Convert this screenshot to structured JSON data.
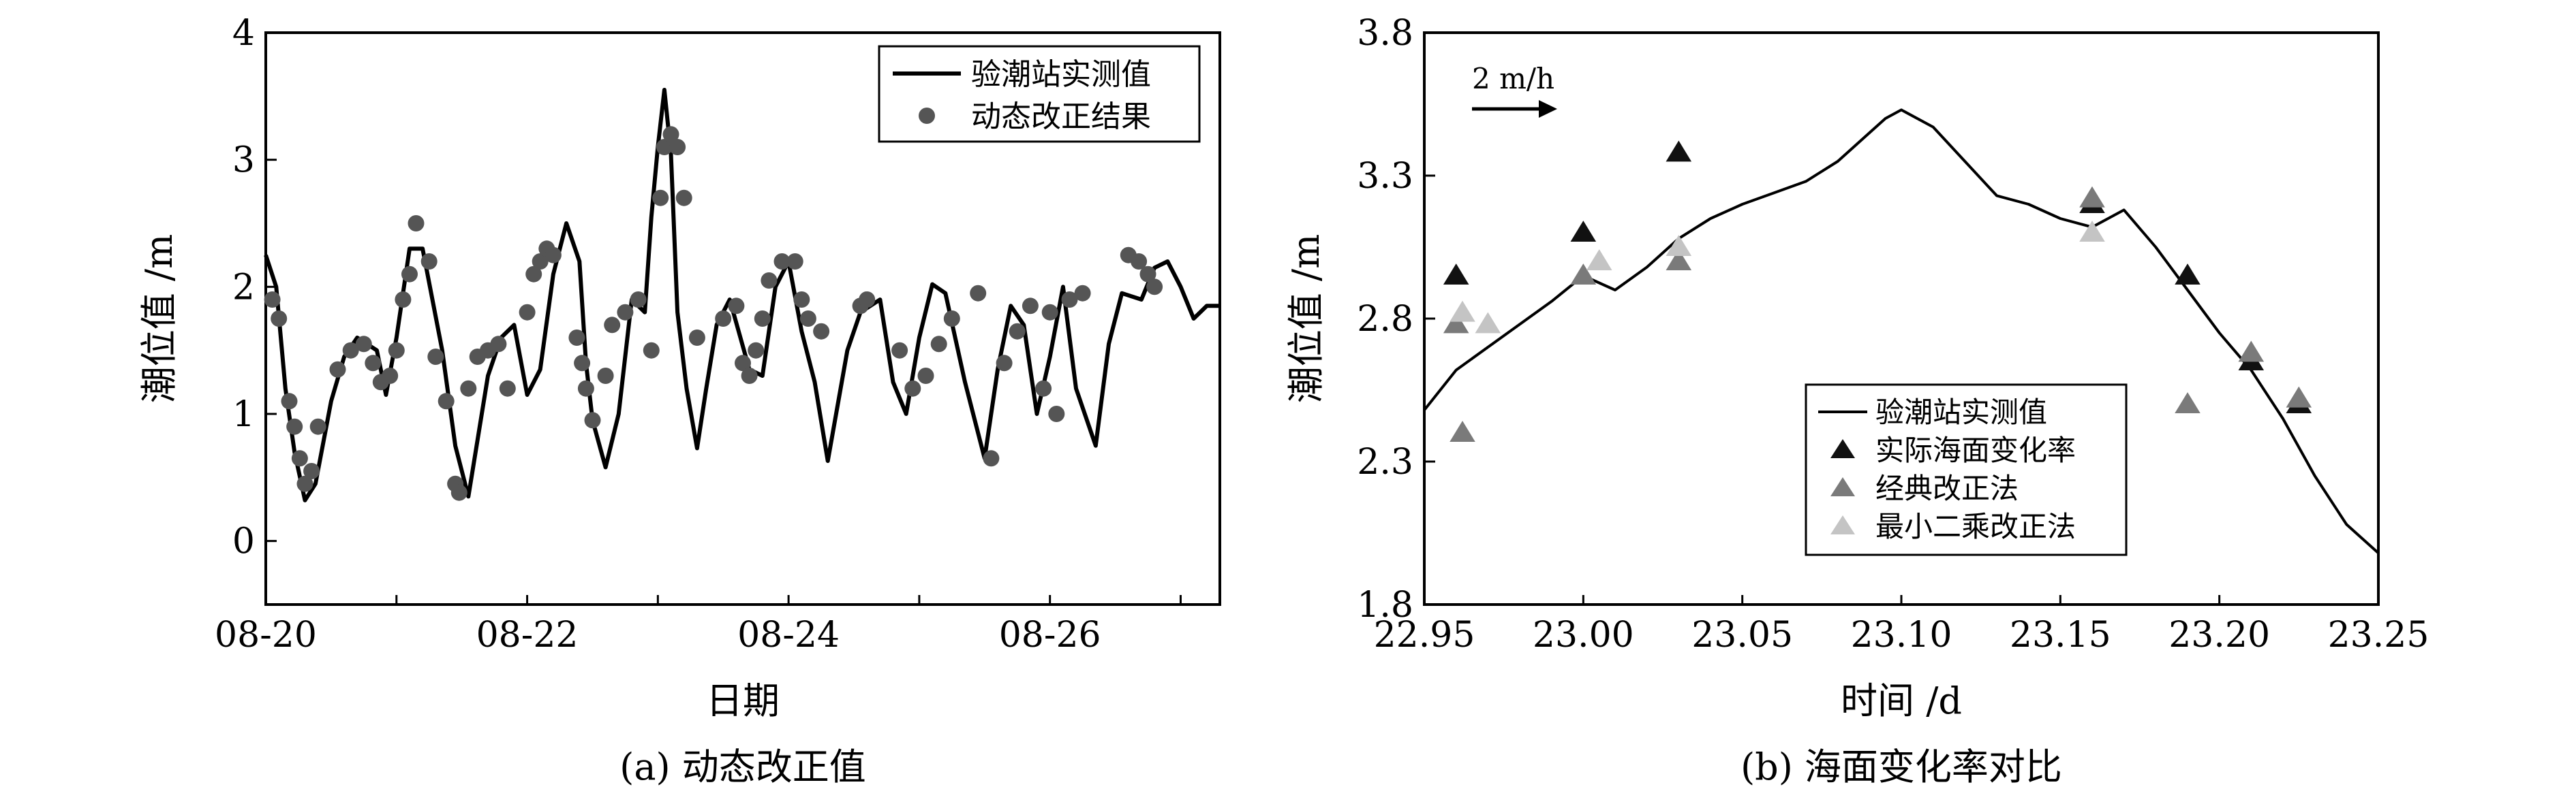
{
  "chart_data": [
    {
      "type": "line",
      "caption": "(a) 动态改正值",
      "xlabel": "日期",
      "ylabel": "潮位值 /m",
      "x_ticks": [
        "08-20",
        "08-22",
        "08-24",
        "08-26"
      ],
      "x_tick_days": [
        0,
        2,
        4,
        6
      ],
      "xlim_days": [
        0,
        7.3
      ],
      "ylim": [
        -0.5,
        4
      ],
      "y_ticks": [
        0,
        1,
        2,
        3,
        4
      ],
      "legend_position": "top-right",
      "legend": [
        "验潮站实测值",
        "动态改正结果"
      ],
      "series": [
        {
          "name": "验潮站实测值",
          "kind": "line",
          "x_days": [
            0.0,
            0.08,
            0.15,
            0.22,
            0.3,
            0.38,
            0.5,
            0.6,
            0.7,
            0.85,
            0.92,
            1.0,
            1.05,
            1.1,
            1.2,
            1.35,
            1.45,
            1.55,
            1.7,
            1.8,
            1.9,
            2.0,
            2.1,
            2.2,
            2.3,
            2.4,
            2.45,
            2.5,
            2.6,
            2.7,
            2.8,
            2.9,
            2.95,
            3.0,
            3.05,
            3.1,
            3.15,
            3.22,
            3.3,
            3.37,
            3.45,
            3.55,
            3.7,
            3.8,
            3.9,
            4.0,
            4.1,
            4.2,
            4.3,
            4.45,
            4.55,
            4.7,
            4.8,
            4.9,
            5.0,
            5.1,
            5.2,
            5.35,
            5.5,
            5.6,
            5.7,
            5.8,
            5.9,
            6.0,
            6.1,
            6.2,
            6.35,
            6.45,
            6.55,
            6.7,
            6.8,
            6.9,
            7.0,
            7.1,
            7.2,
            7.3
          ],
          "values": [
            2.25,
            2.0,
            1.2,
            0.7,
            0.32,
            0.45,
            1.1,
            1.45,
            1.6,
            1.5,
            1.15,
            1.6,
            1.95,
            2.3,
            2.3,
            1.5,
            0.75,
            0.35,
            1.3,
            1.6,
            1.7,
            1.15,
            1.35,
            2.1,
            2.5,
            2.2,
            1.4,
            0.95,
            0.58,
            1.0,
            1.9,
            1.8,
            2.55,
            3.1,
            3.55,
            3.05,
            1.8,
            1.2,
            0.73,
            1.2,
            1.7,
            1.9,
            1.35,
            1.3,
            2.0,
            2.2,
            1.65,
            1.25,
            0.63,
            1.5,
            1.8,
            1.9,
            1.25,
            1.0,
            1.6,
            2.02,
            1.95,
            1.25,
            0.65,
            1.35,
            1.85,
            1.7,
            1.0,
            1.45,
            2.0,
            1.2,
            0.75,
            1.55,
            1.95,
            1.9,
            2.15,
            2.2,
            2.0,
            1.75,
            1.85,
            1.85
          ]
        },
        {
          "name": "动态改正结果",
          "kind": "scatter",
          "x_days": [
            0.05,
            0.1,
            0.18,
            0.22,
            0.26,
            0.3,
            0.35,
            0.4,
            0.55,
            0.65,
            0.75,
            0.82,
            0.88,
            0.95,
            1.0,
            1.05,
            1.1,
            1.15,
            1.25,
            1.3,
            1.38,
            1.45,
            1.48,
            1.55,
            1.62,
            1.7,
            1.78,
            1.85,
            2.0,
            2.05,
            2.1,
            2.15,
            2.2,
            2.38,
            2.42,
            2.45,
            2.5,
            2.6,
            2.65,
            2.75,
            2.85,
            2.95,
            3.02,
            3.05,
            3.1,
            3.15,
            3.2,
            3.3,
            3.5,
            3.6,
            3.65,
            3.7,
            3.75,
            3.8,
            3.85,
            3.95,
            4.05,
            4.1,
            4.15,
            4.25,
            4.55,
            4.6,
            4.85,
            4.95,
            5.05,
            5.15,
            5.25,
            5.45,
            5.55,
            5.65,
            5.75,
            5.85,
            5.95,
            6.0,
            6.05,
            6.15,
            6.25,
            6.6,
            6.68,
            6.75,
            6.8
          ],
          "values": [
            1.9,
            1.75,
            1.1,
            0.9,
            0.65,
            0.45,
            0.55,
            0.9,
            1.35,
            1.5,
            1.55,
            1.4,
            1.25,
            1.3,
            1.5,
            1.9,
            2.1,
            2.5,
            2.2,
            1.45,
            1.1,
            0.45,
            0.38,
            1.2,
            1.45,
            1.5,
            1.55,
            1.2,
            1.8,
            2.1,
            2.2,
            2.3,
            2.25,
            1.6,
            1.4,
            1.2,
            0.95,
            1.3,
            1.7,
            1.8,
            1.9,
            1.5,
            2.7,
            3.1,
            3.2,
            3.1,
            2.7,
            1.6,
            1.75,
            1.85,
            1.4,
            1.3,
            1.5,
            1.75,
            2.05,
            2.2,
            2.2,
            1.9,
            1.75,
            1.65,
            1.85,
            1.9,
            1.5,
            1.2,
            1.3,
            1.55,
            1.75,
            1.95,
            0.65,
            1.4,
            1.65,
            1.85,
            1.2,
            1.8,
            1.0,
            1.9,
            1.95,
            2.25,
            2.2,
            2.1,
            2.0
          ]
        }
      ]
    },
    {
      "type": "line",
      "caption": "(b) 海面变化率对比",
      "xlabel": "时间 /d",
      "ylabel": "潮位值 /m",
      "xlim": [
        22.95,
        23.25
      ],
      "ylim": [
        1.8,
        3.8
      ],
      "x_ticks": [
        "22.95",
        "23.00",
        "23.05",
        "23.10",
        "23.15",
        "23.20",
        "23.25"
      ],
      "x_tick_values": [
        22.95,
        23.0,
        23.05,
        23.1,
        23.15,
        23.2,
        23.25
      ],
      "y_ticks": [
        "1.8",
        "2.3",
        "2.8",
        "3.3",
        "3.8"
      ],
      "y_tick_values": [
        1.8,
        2.3,
        2.8,
        3.3,
        3.8
      ],
      "scale_annotation": "2 m/h",
      "legend_position": "center-right",
      "legend": [
        "验潮站实测值",
        "实际海面变化率",
        "经典改正法",
        "最小二乘改正法"
      ],
      "series": [
        {
          "name": "验潮站实测值",
          "kind": "line",
          "x": [
            22.95,
            22.96,
            22.97,
            22.98,
            22.99,
            23.0,
            23.01,
            23.02,
            23.03,
            23.04,
            23.05,
            23.06,
            23.07,
            23.08,
            23.09,
            23.095,
            23.1,
            23.11,
            23.12,
            23.13,
            23.14,
            23.15,
            23.16,
            23.17,
            23.18,
            23.19,
            23.2,
            23.21,
            23.22,
            23.23,
            23.24,
            23.25
          ],
          "values": [
            2.48,
            2.62,
            2.7,
            2.78,
            2.86,
            2.95,
            2.9,
            2.98,
            3.08,
            3.15,
            3.2,
            3.24,
            3.28,
            3.35,
            3.45,
            3.5,
            3.53,
            3.47,
            3.35,
            3.23,
            3.2,
            3.15,
            3.12,
            3.18,
            3.05,
            2.9,
            2.75,
            2.62,
            2.45,
            2.25,
            2.08,
            1.98
          ]
        },
        {
          "name": "实际海面变化率",
          "kind": "markers",
          "x": [
            22.96,
            23.0,
            23.03,
            23.16,
            23.19,
            23.21,
            23.225
          ],
          "values": [
            2.95,
            3.1,
            3.38,
            3.2,
            2.95,
            2.65,
            2.5
          ]
        },
        {
          "name": "经典改正法",
          "kind": "markers",
          "x": [
            22.96,
            22.962,
            23.0,
            23.03,
            23.16,
            23.19,
            23.21,
            23.225
          ],
          "values": [
            2.78,
            2.4,
            2.95,
            3.0,
            3.22,
            2.5,
            2.68,
            2.52
          ]
        },
        {
          "name": "最小二乘改正法",
          "kind": "markers",
          "x": [
            22.962,
            22.97,
            23.005,
            23.03,
            23.16
          ],
          "values": [
            2.82,
            2.78,
            3.0,
            3.05,
            3.1
          ]
        }
      ]
    }
  ]
}
